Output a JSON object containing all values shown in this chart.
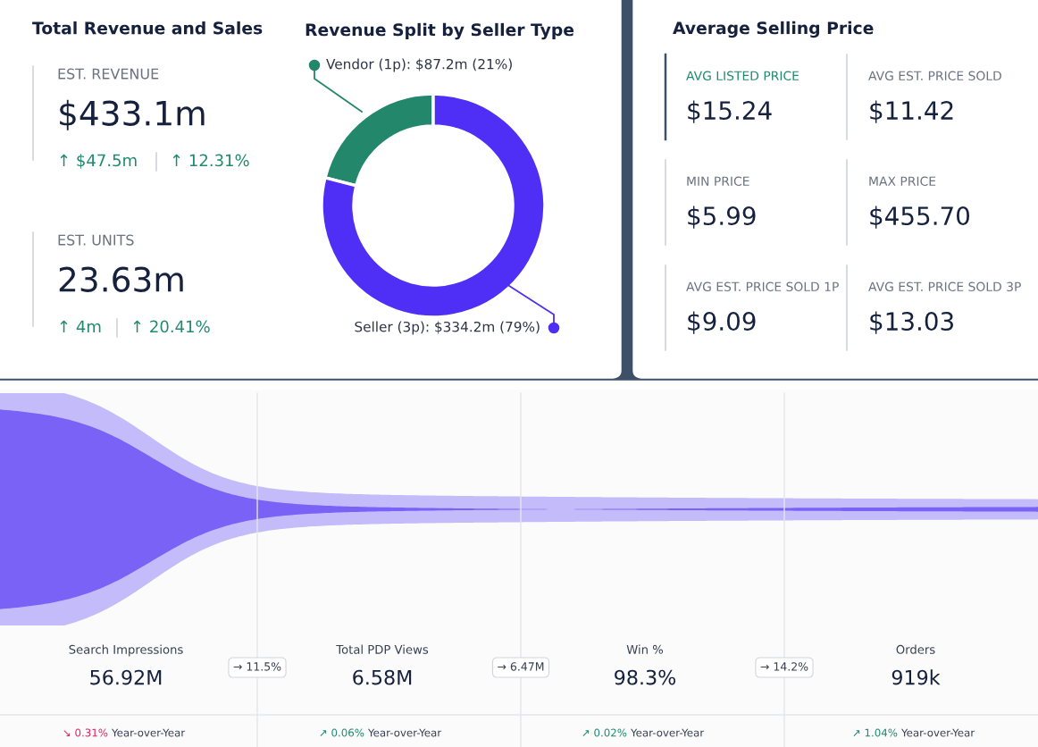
{
  "chart_data": [
    {
      "type": "other",
      "title": "Total Revenue and Sales",
      "annotations": [
        "EST. REVENUE",
        "$433.1m",
        "↑ $47.5m",
        "↑ 12.31%",
        "EST. UNITS",
        "23.63m",
        "↑ 4m",
        "↑ 20.41%"
      ]
    },
    {
      "type": "donut",
      "title": "Revenue Split by Seller Type",
      "categories": [
        "Vendor (1p)",
        "Seller (3p)"
      ],
      "values": [
        21,
        79
      ],
      "value_labels": [
        "$87.2m (21%)",
        "$334.2m (79%)"
      ],
      "colors": [
        "#23876b",
        "#4f2ff5"
      ]
    },
    {
      "type": "other",
      "title": "Average Selling Price",
      "annotations": [
        "AVG LISTED PRICE",
        "$15.24",
        "AVG EST. PRICE SOLD",
        "$11.42",
        "MIN PRICE",
        "$5.99",
        "MAX PRICE",
        "$455.70",
        "AVG EST. PRICE SOLD 1P",
        "$9.09",
        "AVG EST. PRICE SOLD 3P",
        "$13.03"
      ]
    },
    {
      "type": "other",
      "categories": [
        "Search Impressions",
        "Total PDP Views",
        "Win %",
        "Orders"
      ],
      "value_labels": [
        "56.92M",
        "6.58M",
        "98.3%",
        "919k"
      ],
      "annotations": [
        "→ 11.5%",
        "→ 6.47M",
        "→ 14.2%",
        "↘ 0.31%",
        "Year-over-Year",
        "↗ 0.06%",
        "Year-over-Year",
        "↗ 0.02%",
        "Year-over-Year",
        "↗ 1.04%",
        "Year-over-Year"
      ]
    }
  ]
}
